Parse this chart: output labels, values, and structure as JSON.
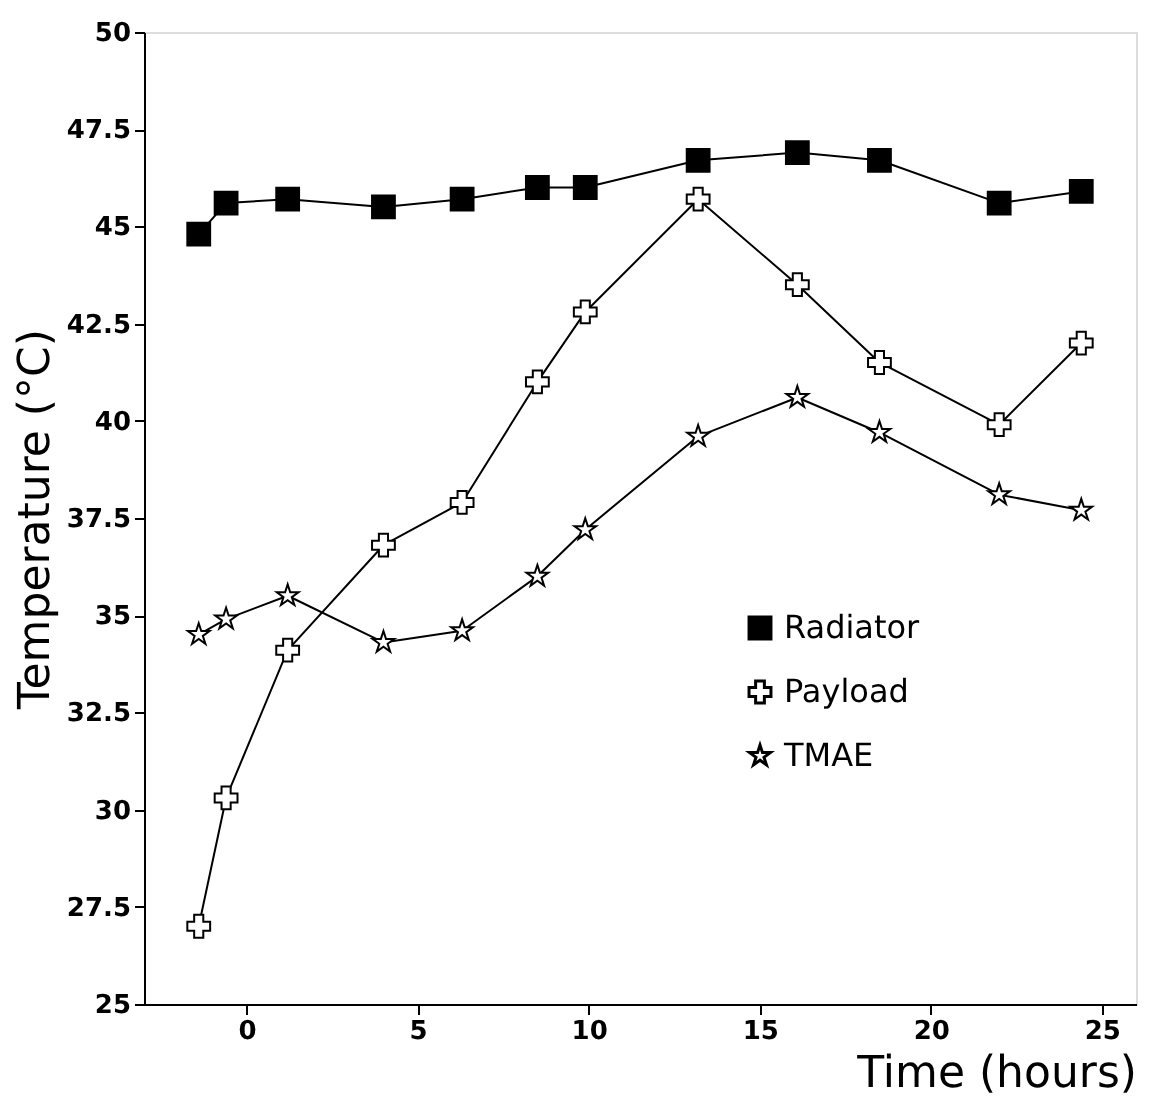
{
  "chart_data": {
    "type": "line",
    "xlabel": "Time (hours)",
    "ylabel": "Temperature (°C)",
    "x": [
      -1.4,
      -0.6,
      1.2,
      4.0,
      6.3,
      8.5,
      9.9,
      13.2,
      16.1,
      18.5,
      22.0,
      24.4
    ],
    "series": [
      {
        "name": "Radiator",
        "color": "#000000",
        "marker": "square",
        "values": [
          44.8,
          45.6,
          45.7,
          45.5,
          45.7,
          46.0,
          46.0,
          46.7,
          46.9,
          46.7,
          45.6,
          45.9
        ]
      },
      {
        "name": "Payload",
        "color": "#000000",
        "marker": "cross",
        "values": [
          27.0,
          30.3,
          34.1,
          36.8,
          37.9,
          41.0,
          42.8,
          45.7,
          43.5,
          41.5,
          39.9,
          42.0
        ]
      },
      {
        "name": "TMAE",
        "color": "#000000",
        "marker": "star",
        "values": [
          34.5,
          34.9,
          35.5,
          34.3,
          34.6,
          36.0,
          37.2,
          39.6,
          40.6,
          39.7,
          38.1,
          37.7
        ]
      }
    ],
    "xlim": [
      -3,
      26
    ],
    "xticks": [
      0,
      5,
      10,
      15,
      20,
      25
    ],
    "ylim": [
      25,
      50
    ],
    "yticks": [
      25,
      27.5,
      30,
      32.5,
      35,
      37.5,
      40,
      42.5,
      45,
      47.5,
      50
    ],
    "grid": false,
    "legend": "bottom right",
    "line_style": "solid"
  }
}
